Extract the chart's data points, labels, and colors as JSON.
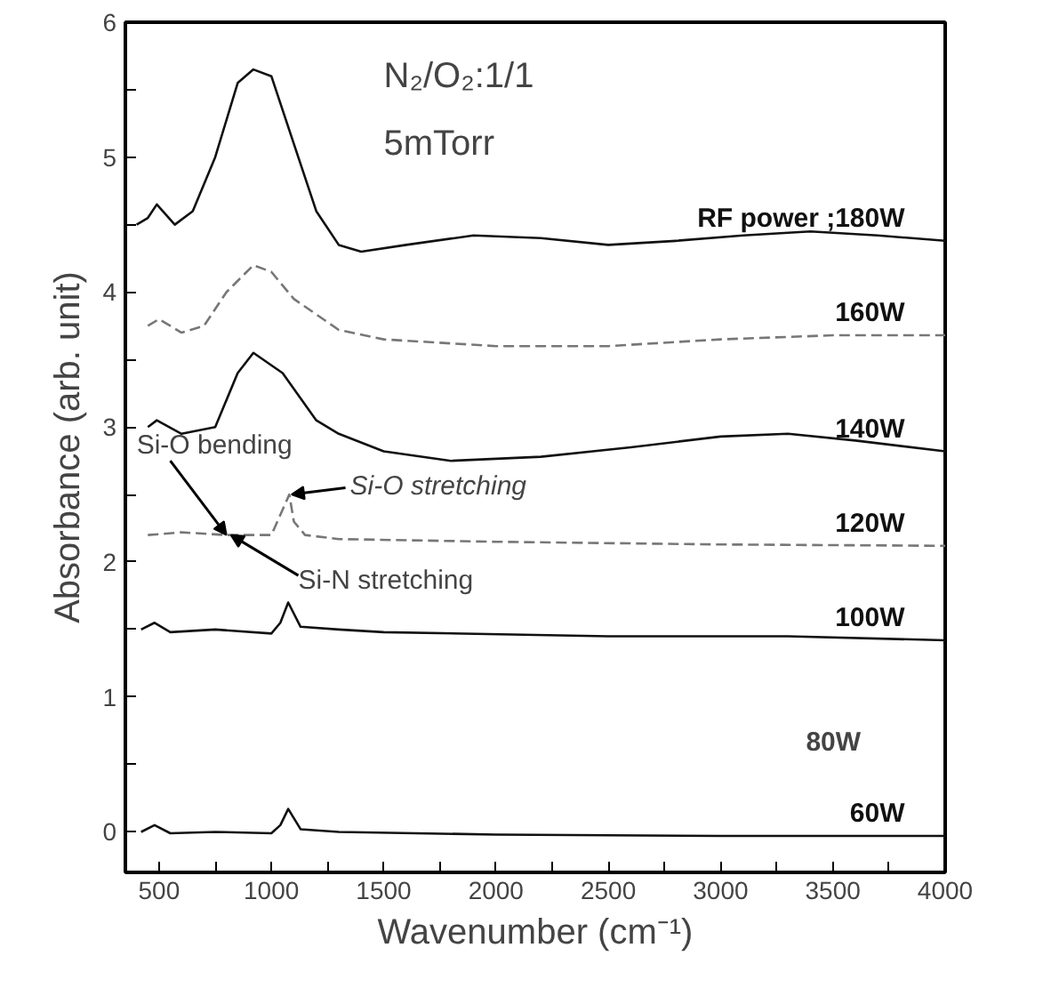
{
  "chart_data": {
    "type": "line",
    "xlabel": "Wavenumber (cm⁻¹)",
    "ylabel": "Absorbance (arb. unit)",
    "xlim": [
      350,
      4000
    ],
    "ylim": [
      -0.3,
      6
    ],
    "xticks": [
      500,
      {
        "value": 750,
        "label": null
      },
      1000,
      {
        "value": 1250,
        "label": null
      },
      1500,
      {
        "value": 1750,
        "label": null
      },
      2000,
      {
        "value": 2250,
        "label": null
      },
      2500,
      {
        "value": 2750,
        "label": null
      },
      3000,
      {
        "value": 3250,
        "label": null
      },
      3500,
      {
        "value": 3750,
        "label": null
      },
      4000
    ],
    "yticks": [
      0,
      {
        "value": 0.5,
        "label": null
      },
      1,
      {
        "value": 1.5,
        "label": null
      },
      2,
      {
        "value": 2.5,
        "label": null
      },
      3,
      {
        "value": 3.5,
        "label": null
      },
      4,
      {
        "value": 4.5,
        "label": null
      },
      5,
      {
        "value": 5.5,
        "label": null
      },
      6
    ],
    "grid": false,
    "marker": "none",
    "series": [
      {
        "name": "RF power ;180W",
        "color": "#111111",
        "line_style": "solid",
        "x": [
          400,
          450,
          490,
          570,
          650,
          750,
          850,
          920,
          1000,
          1100,
          1200,
          1300,
          1400,
          1600,
          1900,
          2200,
          2500,
          2800,
          3100,
          3400,
          3700,
          4000
        ],
        "values": [
          4.5,
          4.55,
          4.65,
          4.5,
          4.6,
          5.0,
          5.55,
          5.65,
          5.6,
          5.1,
          4.6,
          4.35,
          4.3,
          4.35,
          4.42,
          4.4,
          4.35,
          4.38,
          4.42,
          4.45,
          4.42,
          4.38
        ]
      },
      {
        "name": "160W",
        "color": "#777777",
        "line_style": "dashed",
        "x": [
          450,
          500,
          600,
          700,
          800,
          920,
          1000,
          1100,
          1300,
          1500,
          2000,
          2500,
          3000,
          3500,
          4000
        ],
        "values": [
          3.75,
          3.8,
          3.7,
          3.75,
          4.0,
          4.2,
          4.15,
          3.95,
          3.72,
          3.65,
          3.6,
          3.6,
          3.65,
          3.68,
          3.68
        ]
      },
      {
        "name": "140W",
        "color": "#111111",
        "line_style": "solid",
        "x": [
          450,
          490,
          600,
          750,
          850,
          920,
          1050,
          1200,
          1300,
          1500,
          1800,
          2200,
          2600,
          3000,
          3300,
          3600,
          4000
        ],
        "values": [
          3.0,
          3.05,
          2.95,
          3.0,
          3.4,
          3.55,
          3.4,
          3.05,
          2.95,
          2.82,
          2.75,
          2.78,
          2.85,
          2.93,
          2.95,
          2.9,
          2.82
        ]
      },
      {
        "name": "120W",
        "color": "#777777",
        "line_style": "dashed",
        "x": [
          450,
          600,
          800,
          1000,
          1080,
          1100,
          1150,
          1300,
          2000,
          3000,
          4000
        ],
        "values": [
          2.2,
          2.22,
          2.2,
          2.2,
          2.5,
          2.3,
          2.2,
          2.17,
          2.15,
          2.13,
          2.12
        ]
      },
      {
        "name": "100W",
        "color": "#111111",
        "line_style": "solid",
        "x": [
          420,
          480,
          550,
          750,
          1000,
          1040,
          1075,
          1130,
          1300,
          1500,
          2500,
          3300,
          4000
        ],
        "values": [
          1.5,
          1.55,
          1.48,
          1.5,
          1.47,
          1.55,
          1.7,
          1.52,
          1.5,
          1.48,
          1.45,
          1.45,
          1.42
        ]
      },
      {
        "name": "60W",
        "color": "#111111",
        "line_style": "solid",
        "x": [
          420,
          480,
          550,
          750,
          1000,
          1040,
          1075,
          1130,
          1300,
          2000,
          3000,
          4000
        ],
        "values": [
          0.0,
          0.05,
          -0.01,
          0.0,
          -0.01,
          0.05,
          0.17,
          0.02,
          0.0,
          -0.02,
          -0.03,
          -0.03
        ]
      }
    ],
    "annotations": [
      "N₂/O₂:1/1",
      "5mTorr",
      "80W",
      {
        "text": "Si-O bending",
        "x": 800,
        "y": 2.2
      },
      {
        "text": "Si-O stretching",
        "x": 1090,
        "y": 2.5
      },
      {
        "text": "Si-N stretching",
        "x": 820,
        "y": 2.2
      }
    ]
  }
}
